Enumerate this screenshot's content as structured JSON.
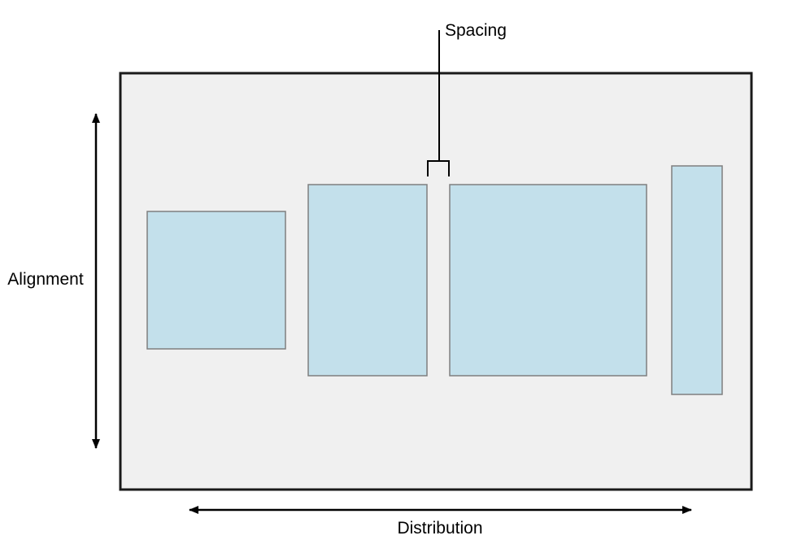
{
  "labels": {
    "spacing": "Spacing",
    "alignment": "Alignment",
    "distribution": "Distribution"
  },
  "colors": {
    "container_fill": "#f0f0f0",
    "container_stroke": "#1a1a1a",
    "view_fill": "#c3e0eb",
    "view_stroke": "#7f7f7f",
    "arrow": "#000000"
  }
}
